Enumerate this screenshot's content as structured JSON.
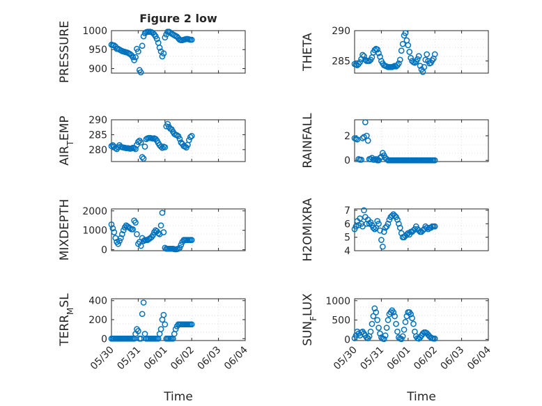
{
  "figure": {
    "background": "#ffffff",
    "marker_color": "#0072BD"
  },
  "chart_data": [
    {
      "type": "scatter",
      "title": "Figure 2 low",
      "ylabel": "PRESSURE",
      "ylabel_sub": "",
      "xlabel": "",
      "ylim": [
        888,
        1000
      ],
      "yticks": [
        900,
        950,
        1000
      ],
      "xlim": [
        0,
        5
      ],
      "xticks": [],
      "grid": true,
      "x": [
        0.0,
        0.05,
        0.1,
        0.15,
        0.2,
        0.25,
        0.3,
        0.35,
        0.4,
        0.45,
        0.5,
        0.55,
        0.6,
        0.65,
        0.7,
        0.75,
        0.8,
        0.85,
        0.9,
        0.95,
        1.0,
        1.05,
        1.1,
        1.15,
        1.2,
        1.25,
        1.3,
        1.35,
        1.4,
        1.45,
        1.5,
        1.55,
        1.6,
        1.65,
        1.7,
        1.75,
        1.8,
        1.85,
        1.9,
        1.95,
        2.0,
        2.05,
        2.1,
        2.15,
        2.2,
        2.25,
        2.3,
        2.35,
        2.4,
        2.45,
        2.5,
        2.55,
        2.6,
        2.65,
        2.7,
        2.75,
        2.8,
        2.85,
        2.9,
        2.95,
        3.0
      ],
      "y": [
        963,
        962,
        961,
        958,
        952,
        952,
        950,
        948,
        946,
        945,
        944,
        943,
        942,
        940,
        938,
        935,
        930,
        922,
        930,
        952,
        945,
        896,
        890,
        960,
        985,
        993,
        996,
        997,
        997,
        997,
        996,
        994,
        990,
        985,
        978,
        968,
        955,
        945,
        932,
        940,
        982,
        990,
        997,
        997,
        995,
        992,
        990,
        988,
        986,
        984,
        980,
        976,
        975,
        975,
        976,
        977,
        978,
        978,
        977,
        976,
        976
      ]
    },
    {
      "type": "scatter",
      "title": "",
      "ylabel": "THETA",
      "ylabel_sub": "",
      "xlabel": "",
      "ylim": [
        283,
        290
      ],
      "yticks": [
        285,
        290
      ],
      "xlim": [
        0,
        5
      ],
      "xticks": [],
      "grid": true,
      "x": [
        0.0,
        0.05,
        0.1,
        0.15,
        0.2,
        0.25,
        0.3,
        0.35,
        0.4,
        0.45,
        0.5,
        0.55,
        0.6,
        0.65,
        0.7,
        0.75,
        0.8,
        0.85,
        0.9,
        0.95,
        1.0,
        1.05,
        1.1,
        1.15,
        1.2,
        1.25,
        1.3,
        1.35,
        1.4,
        1.45,
        1.5,
        1.55,
        1.6,
        1.65,
        1.7,
        1.75,
        1.8,
        1.85,
        1.9,
        1.95,
        2.0,
        2.05,
        2.1,
        2.15,
        2.2,
        2.25,
        2.3,
        2.35,
        2.4,
        2.45,
        2.5,
        2.55,
        2.6,
        2.65,
        2.7,
        2.75,
        2.8,
        2.85,
        2.9,
        2.95,
        3.0
      ],
      "y": [
        284.5,
        284.4,
        284.3,
        284.5,
        284.8,
        285.3,
        286.0,
        285.8,
        285.2,
        285.0,
        285.0,
        285.0,
        285.2,
        285.6,
        286.4,
        286.8,
        287.0,
        286.9,
        286.3,
        285.7,
        285.0,
        284.6,
        284.3,
        284.2,
        284.1,
        284.0,
        284.0,
        284.0,
        284.0,
        284.1,
        284.2,
        284.1,
        284.3,
        284.6,
        285.2,
        286.7,
        287.8,
        289.2,
        289.6,
        288.4,
        287.6,
        286.5,
        285.5,
        285.0,
        284.8,
        284.7,
        284.9,
        285.3,
        285.8,
        284.2,
        283.6,
        283.2,
        284.0,
        285.2,
        286.1,
        285.0,
        284.6,
        284.7,
        285.1,
        285.4,
        286.1
      ]
    },
    {
      "type": "scatter",
      "title": "",
      "ylabel": "AIR",
      "ylabel_sub": "T",
      "ylabel_after": "EMP",
      "xlabel": "",
      "ylim": [
        276,
        290
      ],
      "yticks": [
        280,
        285,
        290
      ],
      "xlim": [
        0,
        5
      ],
      "xticks": [],
      "grid": true,
      "x": [
        0.0,
        0.05,
        0.1,
        0.15,
        0.2,
        0.25,
        0.3,
        0.35,
        0.4,
        0.45,
        0.5,
        0.55,
        0.6,
        0.65,
        0.7,
        0.75,
        0.8,
        0.85,
        0.9,
        0.95,
        1.0,
        1.05,
        1.1,
        1.15,
        1.2,
        1.25,
        1.3,
        1.35,
        1.4,
        1.45,
        1.5,
        1.55,
        1.6,
        1.65,
        1.7,
        1.75,
        1.8,
        1.85,
        1.9,
        1.95,
        2.0,
        2.05,
        2.1,
        2.15,
        2.2,
        2.25,
        2.3,
        2.35,
        2.4,
        2.45,
        2.5,
        2.55,
        2.6,
        2.65,
        2.7,
        2.75,
        2.8,
        2.85,
        2.9,
        2.95,
        3.0
      ],
      "y": [
        281.2,
        281.5,
        281.0,
        280.5,
        280.2,
        280.8,
        281.5,
        281.0,
        280.8,
        280.7,
        280.6,
        280.5,
        280.5,
        280.4,
        280.3,
        280.4,
        280.6,
        280.5,
        280.2,
        281.6,
        282.6,
        283.0,
        282.4,
        277.5,
        277.0,
        281.0,
        283.5,
        283.8,
        283.9,
        283.9,
        283.8,
        283.7,
        283.8,
        283.6,
        283.0,
        282.2,
        281.5,
        281.0,
        280.6,
        281.0,
        280.8,
        287.8,
        288.6,
        287.6,
        287.0,
        286.8,
        286.0,
        285.3,
        285.0,
        284.8,
        284.5,
        283.6,
        282.4,
        281.9,
        281.2,
        281.0,
        280.7,
        281.6,
        283.2,
        284.2,
        284.6
      ]
    },
    {
      "type": "scatter",
      "title": "",
      "ylabel": "RAINFALL",
      "ylabel_sub": "",
      "xlabel": "",
      "ylim": [
        -0.1,
        3.3
      ],
      "yticks": [
        0,
        2
      ],
      "xlim": [
        0,
        5
      ],
      "xticks": [],
      "grid": true,
      "x": [
        0.0,
        0.05,
        0.1,
        0.15,
        0.2,
        0.25,
        0.3,
        0.35,
        0.4,
        0.45,
        0.5,
        0.55,
        0.6,
        0.65,
        0.7,
        0.75,
        0.8,
        0.85,
        0.9,
        0.95,
        1.0,
        1.05,
        1.1,
        1.15,
        1.2,
        1.25,
        1.3,
        1.35,
        1.4,
        1.45,
        1.5,
        1.55,
        1.6,
        1.65,
        1.7,
        1.75,
        1.8,
        1.85,
        1.9,
        1.95,
        2.0,
        2.05,
        2.1,
        2.15,
        2.2,
        2.25,
        2.3,
        2.35,
        2.4,
        2.45,
        2.5,
        2.55,
        2.6,
        2.65,
        2.7,
        2.75,
        2.8,
        2.85,
        2.9,
        2.95,
        3.0
      ],
      "y": [
        1.8,
        1.75,
        1.7,
        0.1,
        0.05,
        0.05,
        1.8,
        1.9,
        3.1,
        2.0,
        1.6,
        0.1,
        0.1,
        0.2,
        0.05,
        0.05,
        0.1,
        0.0,
        0.0,
        0.2,
        0.3,
        0.6,
        0.4,
        0.2,
        0.1,
        0.0,
        0.0,
        0.0,
        0.0,
        0.0,
        0.0,
        0.0,
        0.0,
        0.0,
        0.0,
        0.0,
        0.0,
        0.0,
        0.0,
        0.0,
        0.0,
        0.0,
        0.0,
        0.0,
        0.0,
        0.0,
        0.0,
        0.0,
        0.0,
        0.0,
        0.0,
        0.0,
        0.0,
        0.0,
        0.0,
        0.0,
        0.0,
        0.0,
        0.0,
        0.0,
        0.0
      ]
    },
    {
      "type": "scatter",
      "title": "",
      "ylabel": "MIXDEPTH",
      "ylabel_sub": "",
      "xlabel": "",
      "ylim": [
        -50,
        2100
      ],
      "yticks": [
        0,
        1000,
        2000
      ],
      "xlim": [
        0,
        5
      ],
      "xticks": [],
      "grid": true,
      "x": [
        0.0,
        0.05,
        0.1,
        0.15,
        0.2,
        0.25,
        0.3,
        0.35,
        0.4,
        0.45,
        0.5,
        0.55,
        0.6,
        0.65,
        0.7,
        0.75,
        0.8,
        0.85,
        0.9,
        0.95,
        1.0,
        1.05,
        1.1,
        1.15,
        1.2,
        1.25,
        1.3,
        1.35,
        1.4,
        1.45,
        1.5,
        1.55,
        1.6,
        1.65,
        1.7,
        1.75,
        1.8,
        1.85,
        1.9,
        1.95,
        2.0,
        2.05,
        2.1,
        2.15,
        2.2,
        2.25,
        2.3,
        2.35,
        2.4,
        2.45,
        2.5,
        2.55,
        2.6,
        2.65,
        2.7,
        2.75,
        2.8,
        2.85,
        2.9,
        2.95,
        3.0
      ],
      "y": [
        1300,
        1100,
        900,
        600,
        400,
        300,
        450,
        600,
        800,
        1000,
        1150,
        1250,
        1200,
        1150,
        1100,
        1050,
        1050,
        1500,
        1400,
        800,
        300,
        400,
        200,
        600,
        450,
        500,
        500,
        500,
        550,
        600,
        650,
        750,
        900,
        1000,
        950,
        850,
        800,
        1250,
        1900,
        900,
        100,
        50,
        50,
        50,
        50,
        50,
        50,
        30,
        20,
        30,
        50,
        100,
        250,
        400,
        500,
        500,
        500,
        500,
        500,
        500,
        500
      ]
    },
    {
      "type": "scatter",
      "title": "",
      "ylabel": "H2OMIXRA",
      "ylabel_sub": "",
      "xlabel": "",
      "ylim": [
        4,
        7.1
      ],
      "yticks": [
        4,
        5,
        6,
        7
      ],
      "xlim": [
        0,
        5
      ],
      "xticks": [],
      "grid": true,
      "x": [
        0.0,
        0.05,
        0.1,
        0.15,
        0.2,
        0.25,
        0.3,
        0.35,
        0.4,
        0.45,
        0.5,
        0.55,
        0.6,
        0.65,
        0.7,
        0.75,
        0.8,
        0.85,
        0.9,
        0.95,
        1.0,
        1.05,
        1.1,
        1.15,
        1.2,
        1.25,
        1.3,
        1.35,
        1.4,
        1.45,
        1.5,
        1.55,
        1.6,
        1.65,
        1.7,
        1.75,
        1.8,
        1.85,
        1.9,
        1.95,
        2.0,
        2.05,
        2.1,
        2.15,
        2.2,
        2.25,
        2.3,
        2.35,
        2.4,
        2.45,
        2.5,
        2.55,
        2.6,
        2.65,
        2.7,
        2.75,
        2.8,
        2.85,
        2.9,
        2.95,
        3.0
      ],
      "y": [
        5.6,
        5.8,
        6.2,
        5.9,
        6.4,
        6.0,
        5.8,
        7.0,
        6.5,
        6.0,
        6.3,
        6.0,
        6.1,
        5.9,
        5.7,
        5.6,
        5.7,
        6.2,
        6.0,
        5.5,
        4.8,
        4.3,
        5.4,
        5.7,
        5.8,
        6.0,
        6.3,
        6.5,
        6.6,
        6.7,
        6.6,
        6.5,
        6.3,
        6.0,
        5.7,
        5.3,
        5.0,
        5.0,
        5.1,
        5.2,
        5.3,
        5.2,
        5.4,
        5.4,
        5.5,
        5.6,
        5.8,
        5.6,
        5.5,
        5.4,
        5.4,
        5.5,
        5.6,
        5.8,
        5.7,
        5.6,
        5.7,
        5.7,
        5.8,
        5.8,
        5.8
      ]
    },
    {
      "type": "scatter",
      "title": "",
      "ylabel": "TERR",
      "ylabel_sub": "M",
      "ylabel_after": "SL",
      "xlabel": "Time",
      "ylim": [
        -20,
        420
      ],
      "yticks": [
        0,
        200,
        400
      ],
      "xlim": [
        0,
        5
      ],
      "xticks": [
        "05/30",
        "05/31",
        "06/01",
        "06/02",
        "06/03",
        "06/04"
      ],
      "grid": true,
      "x": [
        0.0,
        0.05,
        0.1,
        0.15,
        0.2,
        0.25,
        0.3,
        0.35,
        0.4,
        0.45,
        0.5,
        0.55,
        0.6,
        0.65,
        0.7,
        0.75,
        0.8,
        0.85,
        0.9,
        0.95,
        1.0,
        1.05,
        1.1,
        1.15,
        1.2,
        1.25,
        1.3,
        1.35,
        1.4,
        1.45,
        1.5,
        1.55,
        1.6,
        1.65,
        1.7,
        1.75,
        1.8,
        1.85,
        1.9,
        1.95,
        2.0,
        2.05,
        2.1,
        2.15,
        2.2,
        2.25,
        2.3,
        2.35,
        2.4,
        2.45,
        2.5,
        2.55,
        2.6,
        2.65,
        2.7,
        2.75,
        2.8,
        2.85,
        2.9,
        2.95,
        3.0
      ],
      "y": [
        0,
        0,
        0,
        0,
        0,
        0,
        0,
        0,
        0,
        0,
        0,
        0,
        0,
        0,
        0,
        0,
        0,
        0,
        50,
        100,
        80,
        0,
        0,
        260,
        380,
        50,
        0,
        0,
        0,
        0,
        0,
        0,
        0,
        0,
        0,
        0,
        50,
        100,
        200,
        250,
        150,
        0,
        0,
        0,
        0,
        0,
        0,
        50,
        100,
        130,
        150,
        150,
        150,
        150,
        150,
        150,
        150,
        150,
        150,
        150,
        150
      ]
    },
    {
      "type": "scatter",
      "title": "",
      "ylabel": "SUN",
      "ylabel_sub": "F",
      "ylabel_after": "LUX",
      "xlabel": "Time",
      "ylim": [
        -30,
        1050
      ],
      "yticks": [
        0,
        500,
        1000
      ],
      "xlim": [
        0,
        5
      ],
      "xticks": [
        "05/30",
        "05/31",
        "06/01",
        "06/02",
        "06/03",
        "06/04"
      ],
      "grid": true,
      "x": [
        0.0,
        0.05,
        0.1,
        0.15,
        0.2,
        0.25,
        0.3,
        0.35,
        0.4,
        0.45,
        0.5,
        0.55,
        0.6,
        0.65,
        0.7,
        0.75,
        0.8,
        0.85,
        0.9,
        0.95,
        1.0,
        1.05,
        1.1,
        1.15,
        1.2,
        1.25,
        1.3,
        1.35,
        1.4,
        1.45,
        1.5,
        1.55,
        1.6,
        1.65,
        1.7,
        1.75,
        1.8,
        1.85,
        1.9,
        1.95,
        2.0,
        2.05,
        2.1,
        2.15,
        2.2,
        2.25,
        2.3,
        2.35,
        2.4,
        2.45,
        2.5,
        2.55,
        2.6,
        2.65,
        2.7,
        2.75,
        2.8,
        2.85,
        2.9,
        2.95,
        3.0
      ],
      "y": [
        30,
        100,
        200,
        150,
        100,
        180,
        200,
        150,
        100,
        50,
        30,
        80,
        200,
        400,
        600,
        800,
        700,
        500,
        300,
        150,
        50,
        20,
        10,
        100,
        300,
        500,
        650,
        700,
        750,
        700,
        600,
        400,
        200,
        50,
        20,
        10,
        80,
        250,
        450,
        600,
        700,
        700,
        650,
        550,
        400,
        200,
        80,
        30,
        20,
        50,
        100,
        150,
        180,
        180,
        160,
        120,
        80,
        50,
        30,
        20,
        20
      ]
    }
  ]
}
